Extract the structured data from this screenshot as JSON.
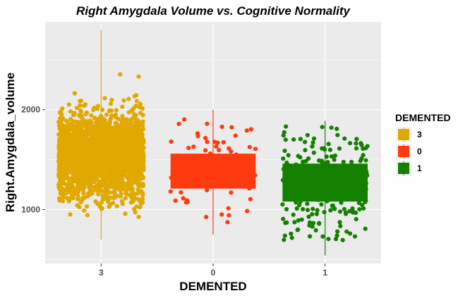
{
  "chart_data": {
    "type": "boxplot_jitter",
    "title": "Right Amygdala Volume vs. Cognitive Normality",
    "xlabel": "DEMENTED",
    "ylabel": "Right.Amygdala_volume",
    "categories": [
      "3",
      "0",
      "1"
    ],
    "ylim": [
      460,
      2880
    ],
    "y_ticks": [
      1000,
      2000
    ],
    "grid": true,
    "legend": {
      "title": "DEMENTED",
      "position": "right",
      "entries": [
        {
          "label": "3",
          "color": "#E0A800"
        },
        {
          "label": "0",
          "color": "#FF3A0F"
        },
        {
          "label": "1",
          "color": "#138000"
        }
      ]
    },
    "series": [
      {
        "name": "3",
        "color": "#E0A800",
        "count": 2400,
        "q1": 1410,
        "median": 1540,
        "q3": 1690,
        "whisker_low": 700,
        "whisker_high": 2800
      },
      {
        "name": "0",
        "color": "#FF3A0F",
        "count": 95,
        "q1": 1210,
        "median": 1390,
        "q3": 1560,
        "whisker_low": 750,
        "whisker_high": 2000
      },
      {
        "name": "1",
        "color": "#138000",
        "count": 260,
        "q1": 1080,
        "median": 1270,
        "q3": 1460,
        "whisker_low": 540,
        "whisker_high": 1890
      }
    ]
  }
}
